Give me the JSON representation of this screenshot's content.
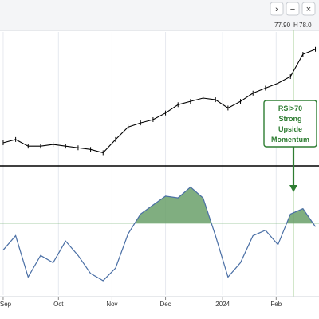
{
  "header": {
    "values": [
      "77.90",
      "H",
      "78.0"
    ],
    "controls": [
      "›",
      "−",
      "×"
    ]
  },
  "annotation": {
    "lines": [
      "RSI>70",
      "Strong",
      "Upside",
      "Momentum"
    ]
  },
  "colors": {
    "accent": "#2e7d32",
    "price": "#000000",
    "rsi_line": "#4a6fa5",
    "rsi_fill": "#6aa06a",
    "threshold": "#55a055",
    "guide": "#a6cf96",
    "grid": "#e6e9ef"
  },
  "chart_data": [
    {
      "type": "line",
      "panel": "price",
      "title": "",
      "x_tick_labels": [
        "Sep",
        "Oct",
        "Nov",
        "Dec",
        "2024",
        "Feb"
      ],
      "series": [
        {
          "x": [
            "2023-09-01",
            "2023-09-08",
            "2023-09-15",
            "2023-09-22",
            "2023-09-29",
            "2023-10-06",
            "2023-10-13",
            "2023-10-20",
            "2023-10-27",
            "2023-11-03",
            "2023-11-10",
            "2023-11-17",
            "2023-11-24",
            "2023-12-01",
            "2023-12-08",
            "2023-12-15",
            "2023-12-22",
            "2023-12-29",
            "2024-01-05",
            "2024-01-12",
            "2024-01-19",
            "2024-01-26",
            "2024-02-02",
            "2024-02-09",
            "2024-02-16",
            "2024-02-23"
          ],
          "values": [
            66.6,
            67.0,
            66.2,
            66.2,
            66.4,
            66.2,
            66.0,
            65.8,
            65.4,
            67.0,
            68.5,
            69.0,
            69.4,
            70.2,
            71.2,
            71.6,
            72.0,
            71.8,
            70.8,
            71.6,
            72.6,
            73.2,
            73.8,
            74.6,
            77.3,
            77.9
          ]
        }
      ],
      "ylim": [
        64,
        80
      ]
    },
    {
      "type": "area",
      "panel": "RSI",
      "title": "",
      "x_tick_labels": [
        "Sep",
        "Oct",
        "Nov",
        "Dec",
        "2024",
        "Feb"
      ],
      "threshold": 70,
      "threshold_fill": "above",
      "series": [
        {
          "x": [
            "2023-09-01",
            "2023-09-08",
            "2023-09-15",
            "2023-09-22",
            "2023-09-29",
            "2023-10-06",
            "2023-10-13",
            "2023-10-20",
            "2023-10-27",
            "2023-11-03",
            "2023-11-10",
            "2023-11-17",
            "2023-11-24",
            "2023-12-01",
            "2023-12-08",
            "2023-12-15",
            "2023-12-22",
            "2023-12-29",
            "2024-01-05",
            "2024-01-12",
            "2024-01-19",
            "2024-01-26",
            "2024-02-02",
            "2024-02-09",
            "2024-02-16",
            "2024-02-23"
          ],
          "values": [
            55,
            63,
            40,
            52,
            48,
            60,
            52,
            42,
            38,
            45,
            64,
            75,
            80,
            85,
            84,
            90,
            84,
            63,
            40,
            48,
            63,
            66,
            58,
            75,
            78,
            68
          ]
        }
      ],
      "ylim": [
        30,
        100
      ]
    }
  ]
}
